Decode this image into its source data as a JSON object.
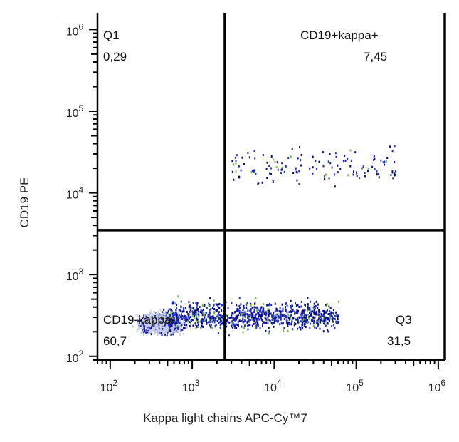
{
  "chart_data": {
    "type": "scatter",
    "title": "",
    "xlabel": "Kappa light chains APC-Cy™7",
    "ylabel": "CD19 PE",
    "x_scale": "log",
    "y_scale": "log",
    "xlim": [
      70,
      1200000
    ],
    "ylim": [
      90,
      1600000
    ],
    "x_ticks": [
      {
        "value": 100,
        "base": "10",
        "exp": "2"
      },
      {
        "value": 1000,
        "base": "10",
        "exp": "3"
      },
      {
        "value": 10000,
        "base": "10",
        "exp": "4"
      },
      {
        "value": 100000,
        "base": "10",
        "exp": "5"
      },
      {
        "value": 1000000,
        "base": "10",
        "exp": "6"
      }
    ],
    "y_ticks": [
      {
        "value": 100,
        "base": "10",
        "exp": "2"
      },
      {
        "value": 1000,
        "base": "10",
        "exp": "3"
      },
      {
        "value": 10000,
        "base": "10",
        "exp": "4"
      },
      {
        "value": 100000,
        "base": "10",
        "exp": "5"
      },
      {
        "value": 1000000,
        "base": "10",
        "exp": "6"
      }
    ],
    "gates": {
      "x_threshold": 2500,
      "y_threshold": 3500
    },
    "quadrants": [
      {
        "name": "Q1",
        "value": "0,29"
      },
      {
        "name": "CD19+kappa+",
        "value": "7,45"
      },
      {
        "name": "CD19-kappa-",
        "value": "60,7"
      },
      {
        "name": "Q3",
        "value": "31,5"
      }
    ],
    "populations": [
      {
        "x_range": [
          150,
          1200
        ],
        "y_range": [
          160,
          420
        ],
        "count": 1400,
        "density": "high"
      },
      {
        "x_range": [
          500,
          60000
        ],
        "y_range": [
          170,
          600
        ],
        "count": 950,
        "density": "medium"
      },
      {
        "x_range": [
          3000,
          300000
        ],
        "y_range": [
          9500,
          50000
        ],
        "count": 140,
        "density": "low"
      }
    ],
    "colors": {
      "low_density": "#c5cbe6",
      "mid_density": "#2233bb",
      "high_density": "#0a0a8c",
      "accent": "#6abf45",
      "gate_lines": "#000000",
      "axis": "#000000"
    }
  }
}
